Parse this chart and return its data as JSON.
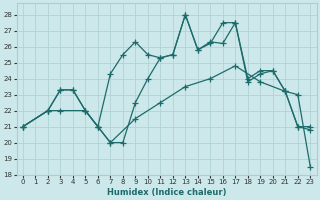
{
  "bg_color": "#cce8ea",
  "grid_color": "#aacfd2",
  "line_color": "#1e6b6b",
  "line_width": 0.9,
  "marker": "+",
  "markersize": 4,
  "markeredgewidth": 0.9,
  "xlabel": "Humidex (Indice chaleur)",
  "xlabel_fontsize": 6.0,
  "xlim": [
    -0.5,
    23.5
  ],
  "ylim": [
    18,
    28.7
  ],
  "yticks": [
    18,
    19,
    20,
    21,
    22,
    23,
    24,
    25,
    26,
    27,
    28
  ],
  "xticks": [
    0,
    1,
    2,
    3,
    4,
    5,
    6,
    7,
    8,
    9,
    10,
    11,
    12,
    13,
    14,
    15,
    16,
    17,
    18,
    19,
    20,
    21,
    22,
    23
  ],
  "tick_fontsize": 5.0,
  "series1_x": [
    0,
    2,
    3,
    4,
    5,
    6,
    7,
    8,
    9,
    10,
    11,
    12,
    13,
    14,
    15,
    16,
    17,
    18,
    19,
    20,
    21,
    22,
    23
  ],
  "series1_y": [
    21.0,
    22.0,
    23.3,
    23.3,
    22.0,
    21.0,
    24.3,
    25.5,
    26.3,
    25.5,
    25.3,
    25.5,
    28.0,
    25.8,
    26.2,
    27.5,
    27.5,
    24.0,
    24.5,
    24.5,
    23.2,
    21.0,
    21.0
  ],
  "series2_x": [
    0,
    2,
    3,
    4,
    5,
    6,
    7,
    8,
    9,
    10,
    11,
    12,
    13,
    14,
    15,
    16,
    17,
    18,
    19,
    20,
    21,
    22,
    23
  ],
  "series2_y": [
    21.0,
    22.0,
    23.3,
    23.3,
    22.0,
    21.0,
    20.0,
    20.0,
    22.5,
    24.0,
    25.3,
    25.5,
    28.0,
    25.8,
    26.3,
    26.2,
    27.5,
    23.8,
    24.3,
    24.5,
    23.2,
    21.0,
    20.8
  ],
  "series3_x": [
    0,
    2,
    3,
    5,
    6,
    7,
    9,
    11,
    13,
    15,
    17,
    19,
    21,
    22,
    23
  ],
  "series3_y": [
    21.0,
    22.0,
    22.0,
    22.0,
    21.0,
    20.0,
    21.5,
    22.5,
    23.5,
    24.0,
    24.8,
    23.8,
    23.2,
    23.0,
    18.5
  ]
}
